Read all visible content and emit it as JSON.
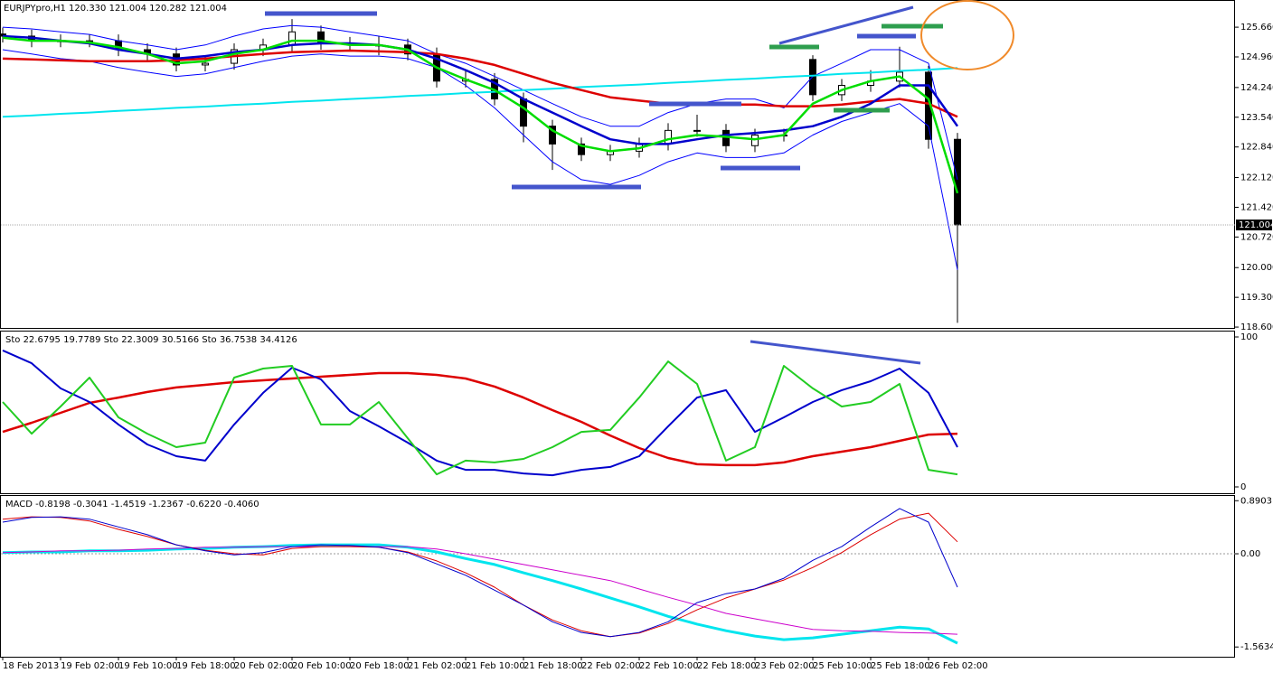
{
  "chart_data": [
    {
      "type": "candlestick",
      "title": "EURJPYpro,H1  120.330 121.004 120.282 121.004",
      "categories": [
        "18 Feb 2013",
        null,
        "19 Feb 02:00",
        null,
        "19 Feb 10:00",
        null,
        "19 Feb 18:00",
        null,
        "20 Feb 02:00",
        null,
        "20 Feb 10:00",
        null,
        "20 Feb 18:00",
        null,
        "21 Feb 02:00",
        null,
        "21 Feb 10:00",
        null,
        "21 Feb 18:00",
        null,
        "22 Feb 02:00",
        null,
        "22 Feb 10:00",
        null,
        "22 Feb 18:00",
        null,
        "23 Feb 02:00",
        null,
        "25 Feb 10:00",
        null,
        "25 Feb 18:00",
        null,
        "26 Feb 02:00",
        null
      ],
      "open": [
        125.5,
        125.45,
        125.34,
        125.34,
        125.34,
        125.13,
        125.03,
        124.77,
        124.81,
        125.13,
        125.24,
        125.55,
        125.28,
        125.24,
        125.24,
        125.03,
        124.39,
        124.43,
        123.97,
        123.33,
        122.91,
        122.66,
        122.74,
        122.91,
        123.23,
        123.23,
        122.87,
        123.12,
        124.9,
        124.07,
        124.29,
        124.39,
        124.6,
        123.02
      ],
      "high": [
        125.65,
        125.6,
        125.49,
        125.49,
        125.49,
        125.28,
        125.18,
        124.96,
        125.28,
        125.39,
        125.85,
        125.7,
        125.43,
        125.45,
        125.39,
        125.18,
        124.65,
        124.58,
        124.12,
        123.48,
        123.06,
        122.89,
        123.06,
        123.4,
        123.6,
        123.38,
        123.27,
        123.27,
        125.0,
        124.44,
        124.65,
        125.2,
        124.75,
        123.17
      ],
      "low": [
        125.3,
        125.19,
        125.19,
        125.19,
        124.98,
        124.88,
        124.62,
        124.62,
        124.66,
        124.98,
        125.09,
        125.13,
        125.09,
        125.0,
        124.88,
        124.24,
        124.24,
        123.82,
        122.95,
        122.3,
        122.51,
        122.51,
        122.59,
        122.76,
        123.08,
        122.72,
        122.72,
        122.97,
        123.92,
        123.92,
        124.14,
        124.24,
        122.8,
        118.7
      ],
      "close": [
        125.45,
        125.34,
        125.34,
        125.34,
        125.13,
        125.03,
        124.77,
        124.81,
        125.13,
        125.24,
        125.55,
        125.28,
        125.24,
        125.24,
        125.03,
        124.39,
        124.43,
        123.97,
        123.33,
        122.91,
        122.66,
        122.74,
        122.91,
        123.23,
        123.23,
        122.87,
        123.12,
        123.12,
        124.07,
        124.29,
        124.39,
        124.6,
        123.02,
        121.004
      ],
      "series": [
        {
          "color": "#0000ff",
          "values": [
            125.66,
            125.62,
            125.55,
            125.49,
            125.34,
            125.24,
            125.13,
            125.24,
            125.45,
            125.62,
            125.7,
            125.66,
            125.55,
            125.45,
            125.34,
            125.03,
            124.81,
            124.5,
            124.18,
            123.86,
            123.55,
            123.33,
            123.33,
            123.65,
            123.86,
            123.97,
            123.97,
            123.76,
            124.5,
            124.81,
            125.13,
            125.13,
            124.81,
            122.07
          ]
        },
        {
          "color": "#0000ff",
          "values": [
            125.13,
            125.03,
            124.92,
            124.86,
            124.71,
            124.6,
            124.5,
            124.56,
            124.71,
            124.86,
            124.98,
            125.03,
            124.98,
            124.98,
            124.92,
            124.71,
            124.29,
            123.76,
            123.12,
            122.49,
            122.07,
            121.96,
            122.17,
            122.49,
            122.7,
            122.59,
            122.59,
            122.7,
            123.12,
            123.44,
            123.65,
            123.86,
            123.33,
            119.95
          ]
        },
        {
          "color": "#00e5ee",
          "values": [
            123.55,
            123.58,
            123.62,
            123.65,
            123.69,
            123.72,
            123.76,
            123.79,
            123.83,
            123.86,
            123.9,
            123.93,
            123.97,
            124.0,
            124.04,
            124.07,
            124.11,
            124.14,
            124.18,
            124.21,
            124.25,
            124.28,
            124.31,
            124.35,
            124.38,
            124.42,
            124.45,
            124.49,
            124.52,
            124.56,
            124.59,
            124.63,
            124.66,
            124.7
          ]
        },
        {
          "color": "#dd0000",
          "values": [
            124.92,
            124.9,
            124.88,
            124.86,
            124.86,
            124.86,
            124.88,
            124.92,
            124.98,
            125.03,
            125.07,
            125.09,
            125.11,
            125.09,
            125.07,
            125.03,
            124.92,
            124.77,
            124.56,
            124.35,
            124.18,
            124.01,
            123.93,
            123.86,
            123.84,
            123.84,
            123.84,
            123.8,
            123.8,
            123.84,
            123.91,
            123.97,
            123.86,
            123.55
          ]
        },
        {
          "color": "#0000cc",
          "values": [
            125.45,
            125.41,
            125.34,
            125.28,
            125.13,
            125.03,
            124.92,
            124.98,
            125.07,
            125.13,
            125.24,
            125.28,
            125.28,
            125.24,
            125.13,
            124.92,
            124.65,
            124.35,
            123.97,
            123.65,
            123.33,
            123.02,
            122.91,
            122.91,
            123.02,
            123.12,
            123.17,
            123.23,
            123.33,
            123.55,
            123.86,
            124.29,
            124.29,
            123.33
          ]
        },
        {
          "color": "#00dd00",
          "values": [
            125.41,
            125.34,
            125.34,
            125.3,
            125.19,
            125.03,
            124.81,
            124.86,
            125.03,
            125.13,
            125.34,
            125.34,
            125.24,
            125.24,
            125.13,
            124.71,
            124.43,
            124.18,
            123.76,
            123.23,
            122.87,
            122.74,
            122.81,
            123.02,
            123.12,
            123.08,
            123.02,
            123.12,
            123.86,
            124.18,
            124.39,
            124.5,
            123.97,
            121.75
          ]
        }
      ],
      "ylim": [
        118.58,
        126.3
      ],
      "yticks": [
        {
          "value": 125.66,
          "label": "125.660"
        },
        {
          "value": 124.96,
          "label": "124.960"
        },
        {
          "value": 124.24,
          "label": "124.240"
        },
        {
          "value": 123.54,
          "label": "123.540"
        },
        {
          "value": 122.84,
          "label": "122.840"
        },
        {
          "value": 122.12,
          "label": "122.120"
        },
        {
          "value": 121.42,
          "label": "121.420"
        },
        {
          "value": 120.72,
          "label": "120.720"
        },
        {
          "value": 120,
          "label": "120.000"
        },
        {
          "value": 119.3,
          "label": "119.300"
        },
        {
          "value": 118.6,
          "label": "118.600"
        }
      ],
      "last_price": 121.004
    },
    {
      "type": "line",
      "title": "Sto 22.6795 19.7789  Sto 22.3009 30.5166  Sto 36.7538 34.4126",
      "series": [
        {
          "color": "#dd0000",
          "values": [
            36.7,
            42.8,
            49.4,
            56.0,
            59.6,
            63.3,
            66.3,
            68.1,
            69.9,
            71.1,
            72.3,
            73.5,
            74.7,
            75.9,
            75.9,
            74.7,
            72.3,
            66.9,
            59.6,
            51.2,
            43.4,
            34.3,
            25.9,
            19.3,
            15.1,
            14.5,
            14.5,
            16.3,
            20.5,
            23.5,
            26.5,
            30.7,
            34.9,
            35.5
          ]
        },
        {
          "color": "#0000cc",
          "values": [
            91.0,
            82.5,
            65.7,
            56.6,
            41.6,
            28.3,
            20.5,
            17.5,
            41.6,
            62.7,
            79.5,
            71.7,
            50.6,
            40.4,
            29.5,
            17.5,
            11.4,
            11.4,
            9.0,
            7.8,
            11.4,
            13.3,
            20.5,
            40.4,
            59.6,
            64.5,
            36.7,
            46.4,
            56.6,
            64.5,
            70.5,
            78.9,
            62.7,
            26.5
          ]
        },
        {
          "color": "#22cc22",
          "values": [
            56.6,
            35.5,
            53.6,
            72.9,
            46.4,
            35.5,
            26.5,
            29.5,
            72.9,
            78.9,
            80.7,
            41.6,
            41.6,
            56.6,
            32.5,
            8.4,
            17.5,
            16.3,
            18.7,
            26.5,
            36.7,
            38.0,
            59.6,
            83.7,
            68.7,
            17.5,
            26.5,
            80.7,
            65.7,
            53.6,
            56.6,
            68.7,
            11.4,
            8.4
          ]
        }
      ],
      "ylim": [
        0,
        100
      ],
      "yticks": [
        0,
        100
      ]
    },
    {
      "type": "line",
      "title": "MACD -0.8198 -0.3041 -1.4519 -1.2367 -0.6220 -0.4060",
      "series": [
        {
          "color": "#00e5ee",
          "values": [
            0.02,
            0.03,
            0.03,
            0.05,
            0.05,
            0.06,
            0.08,
            0.09,
            0.11,
            0.12,
            0.14,
            0.15,
            0.15,
            0.15,
            0.11,
            0.03,
            -0.08,
            -0.18,
            -0.32,
            -0.45,
            -0.59,
            -0.74,
            -0.89,
            -1.05,
            -1.18,
            -1.29,
            -1.38,
            -1.44,
            -1.41,
            -1.35,
            -1.29,
            -1.23,
            -1.26,
            -1.5
          ]
        },
        {
          "color": "#cc00cc",
          "values": [
            0.02,
            0.03,
            0.05,
            0.05,
            0.06,
            0.08,
            0.09,
            0.11,
            0.11,
            0.12,
            0.12,
            0.12,
            0.12,
            0.12,
            0.12,
            0.08,
            0.0,
            -0.09,
            -0.18,
            -0.27,
            -0.36,
            -0.45,
            -0.59,
            -0.73,
            -0.86,
            -1.0,
            -1.09,
            -1.18,
            -1.27,
            -1.29,
            -1.3,
            -1.32,
            -1.33,
            -1.35
          ]
        },
        {
          "color": "#dd0000",
          "values": [
            0.58,
            0.62,
            0.61,
            0.55,
            0.41,
            0.29,
            0.15,
            0.06,
            0.0,
            -0.02,
            0.09,
            0.12,
            0.12,
            0.11,
            0.03,
            -0.12,
            -0.32,
            -0.56,
            -0.86,
            -1.11,
            -1.29,
            -1.39,
            -1.33,
            -1.17,
            -0.94,
            -0.74,
            -0.59,
            -0.44,
            -0.23,
            0.02,
            0.32,
            0.58,
            0.68,
            0.2
          ]
        },
        {
          "color": "#0000cc",
          "values": [
            0.53,
            0.61,
            0.62,
            0.58,
            0.45,
            0.32,
            0.15,
            0.05,
            -0.02,
            0.02,
            0.12,
            0.15,
            0.14,
            0.11,
            0.02,
            -0.17,
            -0.36,
            -0.61,
            -0.86,
            -1.14,
            -1.32,
            -1.39,
            -1.32,
            -1.14,
            -0.82,
            -0.67,
            -0.59,
            -0.41,
            -0.11,
            0.12,
            0.45,
            0.76,
            0.53,
            -0.56
          ]
        }
      ],
      "ylim": [
        -1.727,
        0.955
      ],
      "yticks": [
        0.8903,
        {
          "value": 0,
          "label": "0.00"
        },
        -1.5634
      ],
      "zero_line": true
    }
  ]
}
